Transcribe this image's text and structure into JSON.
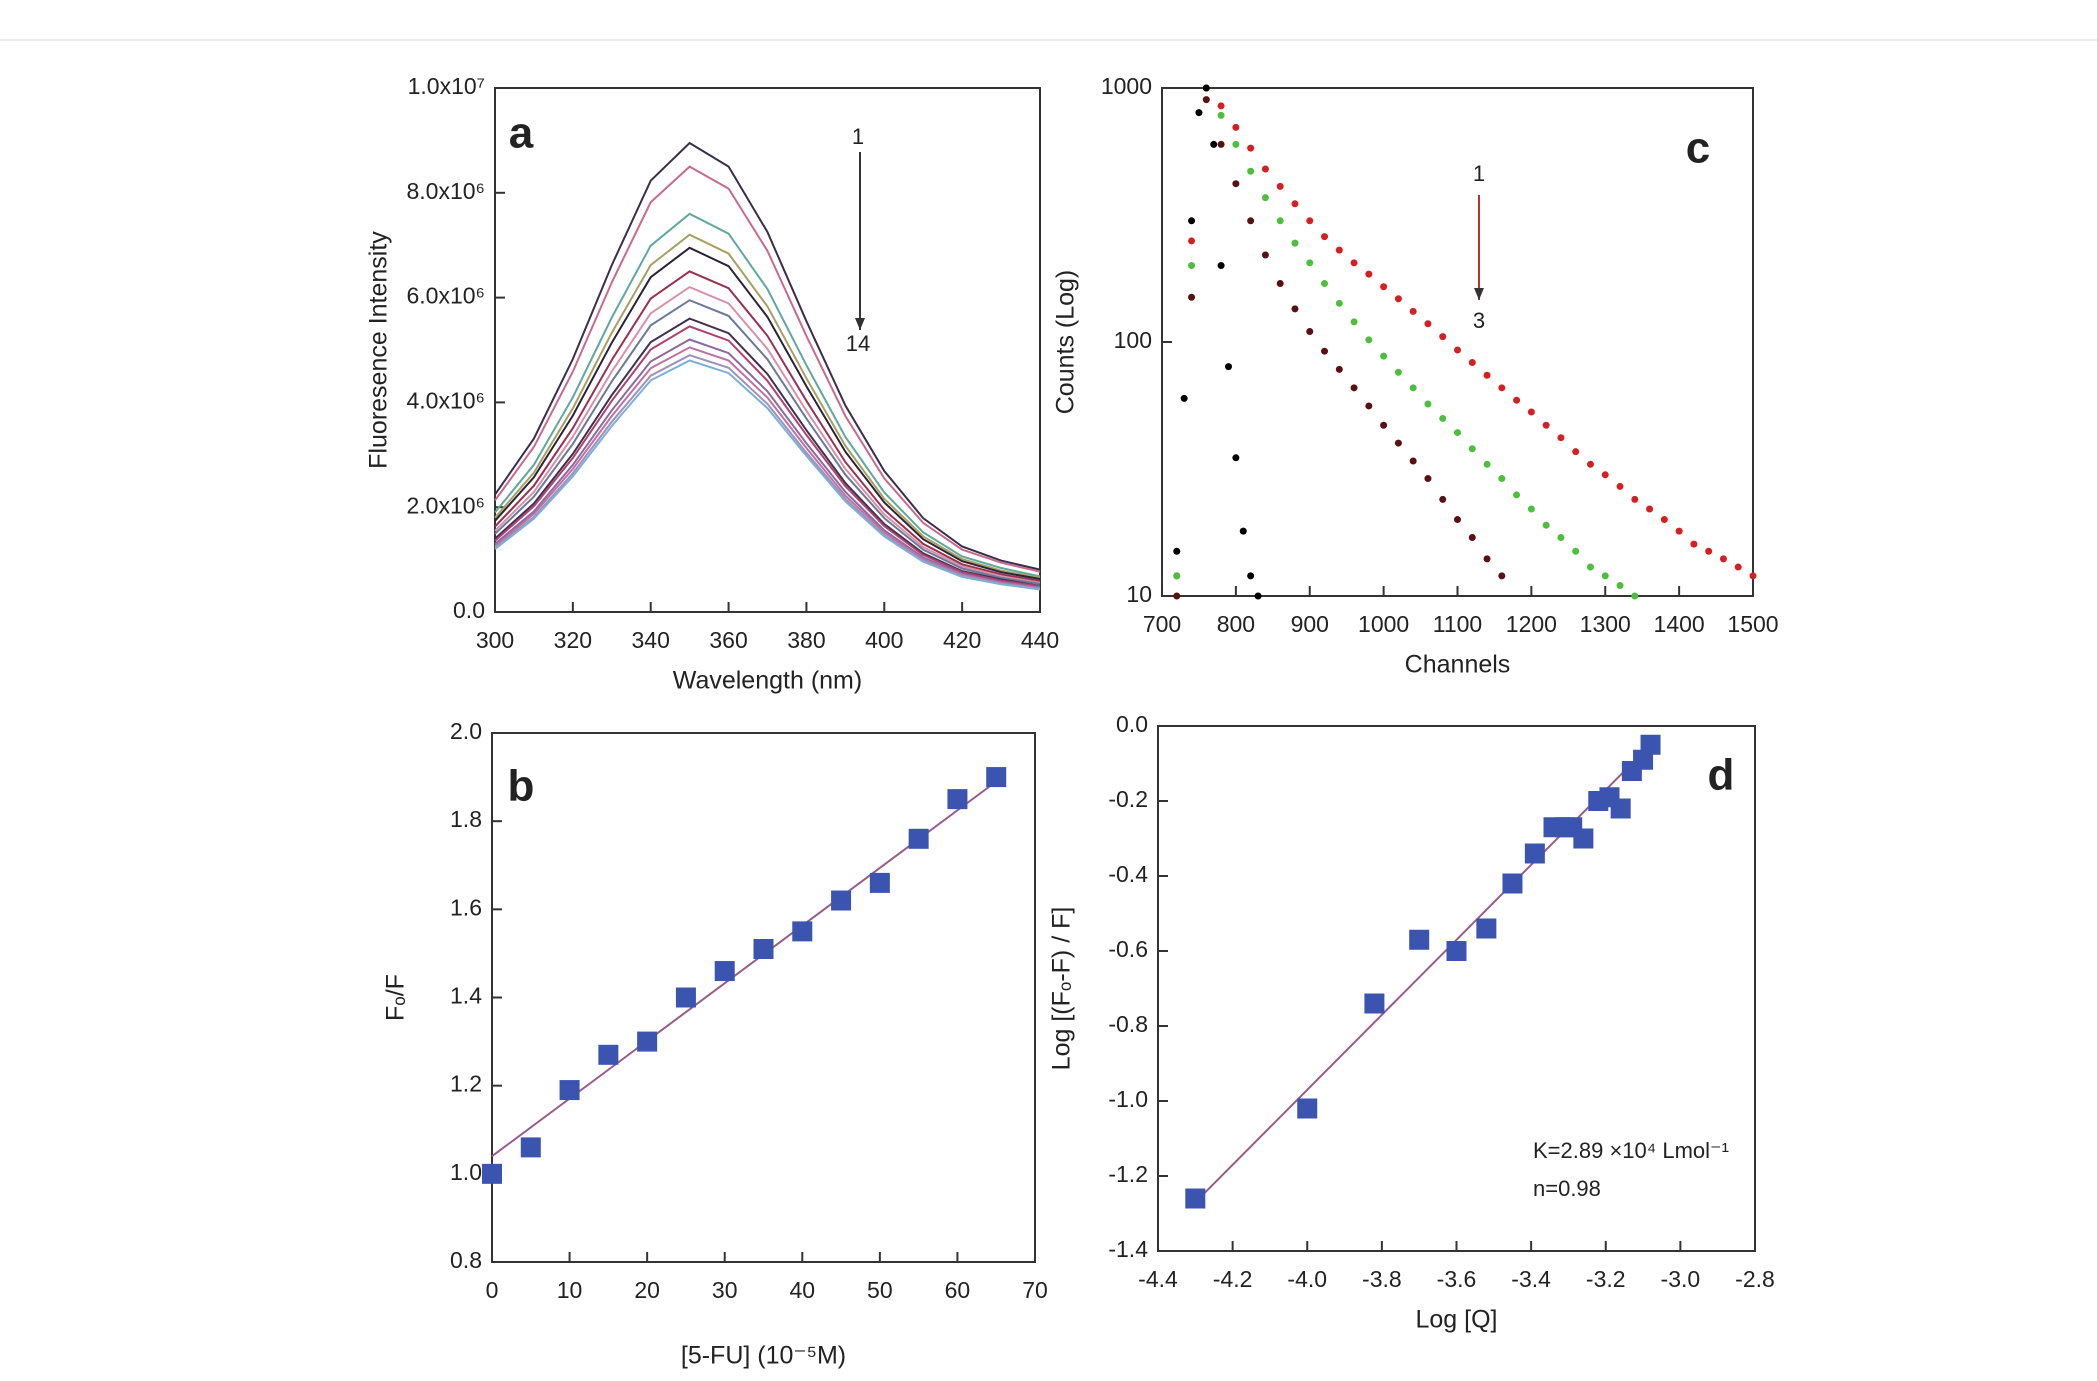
{
  "chart_data": [
    {
      "type": "line",
      "panel_label": "a",
      "annotations": [
        "1",
        "14"
      ],
      "xlabel": "Wavelength (nm)",
      "ylabel": "Fluoresence Intensity",
      "x": [
        300,
        310,
        320,
        330,
        340,
        350,
        360,
        370,
        380,
        390,
        400,
        410,
        420,
        430,
        440
      ],
      "series": [
        {
          "color": "#3a2e4a",
          "values": [
            2240000,
            3310000,
            4830000,
            6620000,
            8230000,
            8950000,
            8500000,
            7250000,
            5550000,
            3940000,
            2690000,
            1790000,
            1250000,
            980000,
            810000
          ]
        },
        {
          "color": "#c86a8a",
          "values": [
            2130000,
            3150000,
            4590000,
            6290000,
            7820000,
            8500000,
            8080000,
            6890000,
            5270000,
            3740000,
            2550000,
            1700000,
            1190000,
            940000,
            770000
          ]
        },
        {
          "color": "#5fa8a0",
          "values": [
            1900000,
            2810000,
            4100000,
            5620000,
            6990000,
            7600000,
            7220000,
            6160000,
            4710000,
            3340000,
            2280000,
            1520000,
            1060000,
            840000,
            680000
          ]
        },
        {
          "color": "#a8a060",
          "values": [
            1800000,
            2660000,
            3890000,
            5330000,
            6620000,
            7200000,
            6840000,
            5830000,
            4460000,
            3170000,
            2160000,
            1440000,
            1010000,
            790000,
            650000
          ]
        },
        {
          "color": "#2c2238",
          "values": [
            1740000,
            2570000,
            3750000,
            5140000,
            6390000,
            6950000,
            6600000,
            5630000,
            4310000,
            3060000,
            2090000,
            1390000,
            970000,
            760000,
            630000
          ]
        },
        {
          "color": "#9a3050",
          "values": [
            1630000,
            2410000,
            3510000,
            4810000,
            5980000,
            6500000,
            6180000,
            5270000,
            4030000,
            2860000,
            1950000,
            1300000,
            910000,
            720000,
            590000
          ]
        },
        {
          "color": "#d890a8",
          "values": [
            1550000,
            2290000,
            3350000,
            4590000,
            5700000,
            6200000,
            5890000,
            5020000,
            3840000,
            2730000,
            1860000,
            1240000,
            870000,
            680000,
            560000
          ]
        },
        {
          "color": "#6a7a9a",
          "values": [
            1490000,
            2200000,
            3210000,
            4400000,
            5470000,
            5950000,
            5650000,
            4820000,
            3690000,
            2620000,
            1790000,
            1190000,
            830000,
            650000,
            540000
          ]
        },
        {
          "color": "#403050",
          "values": [
            1400000,
            2070000,
            3020000,
            4140000,
            5150000,
            5600000,
            5320000,
            4540000,
            3470000,
            2460000,
            1680000,
            1120000,
            780000,
            620000,
            500000
          ]
        },
        {
          "color": "#b04070",
          "values": [
            1360000,
            2020000,
            2940000,
            4030000,
            5010000,
            5450000,
            5180000,
            4410000,
            3380000,
            2400000,
            1640000,
            1090000,
            760000,
            600000,
            490000
          ]
        },
        {
          "color": "#8a6aa0",
          "values": [
            1300000,
            1920000,
            2810000,
            3850000,
            4780000,
            5200000,
            4940000,
            4210000,
            3220000,
            2290000,
            1560000,
            1040000,
            730000,
            570000,
            470000
          ]
        },
        {
          "color": "#c070a0",
          "values": [
            1260000,
            1870000,
            2730000,
            3740000,
            4650000,
            5050000,
            4800000,
            4090000,
            3130000,
            2220000,
            1520000,
            1010000,
            710000,
            560000,
            450000
          ]
        },
        {
          "color": "#a090b8",
          "values": [
            1230000,
            1810000,
            2650000,
            3630000,
            4510000,
            4900000,
            4660000,
            3970000,
            3040000,
            2160000,
            1470000,
            980000,
            690000,
            540000,
            440000
          ]
        },
        {
          "color": "#7ab0d8",
          "values": [
            1200000,
            1780000,
            2590000,
            3550000,
            4420000,
            4800000,
            4560000,
            3890000,
            2980000,
            2110000,
            1440000,
            960000,
            670000,
            530000,
            430000
          ]
        }
      ],
      "xlim": [
        300,
        440
      ],
      "xticks": [
        300,
        320,
        340,
        360,
        380,
        400,
        420,
        440
      ],
      "ylim": [
        0,
        10000000
      ],
      "yticks": [
        {
          "value": 0,
          "label": "0.0"
        },
        {
          "value": 2000000,
          "label": "2.0x10⁶"
        },
        {
          "value": 4000000,
          "label": "4.0x10⁶"
        },
        {
          "value": 6000000,
          "label": "6.0x10⁶"
        },
        {
          "value": 8000000,
          "label": "8.0x10⁶"
        },
        {
          "value": 10000000,
          "label": "1.0x10⁷"
        }
      ]
    },
    {
      "type": "scatter",
      "panel_label": "b",
      "marker": "square",
      "xlabel": "[5-FU]  (10⁻⁵M)",
      "ylabel": "Fₒ/F",
      "series": [
        {
          "color": "#3a54b0",
          "x": [
            0,
            5,
            10,
            15,
            20,
            25,
            30,
            35,
            40,
            45,
            50,
            55,
            60,
            65
          ],
          "values": [
            1.0,
            1.06,
            1.19,
            1.27,
            1.3,
            1.4,
            1.46,
            1.51,
            1.55,
            1.62,
            1.66,
            1.76,
            1.85,
            1.9
          ]
        }
      ],
      "fit_line": {
        "color": "#9a5a8a",
        "x": [
          0,
          65
        ],
        "values": [
          1.04,
          1.89
        ]
      },
      "xlim": [
        0,
        70
      ],
      "xticks": [
        0,
        10,
        20,
        30,
        40,
        50,
        60,
        70
      ],
      "ylim": [
        0.8,
        2.0
      ],
      "yticks": [
        0.8,
        {
          "value": 1,
          "label": "1.0"
        },
        1.2,
        1.4,
        1.6,
        1.8,
        {
          "value": 2,
          "label": "2.0"
        }
      ]
    },
    {
      "type": "scatter",
      "panel_label": "c",
      "marker": "dot",
      "log_y": true,
      "annotations": [
        "1",
        "3"
      ],
      "xlabel": "Channels",
      "ylabel": "Counts (Log)",
      "series": [
        {
          "color": "#d42020",
          "x": [
            720,
            740,
            760,
            780,
            800,
            820,
            840,
            860,
            880,
            900,
            920,
            940,
            960,
            980,
            1000,
            1020,
            1040,
            1060,
            1080,
            1100,
            1120,
            1140,
            1160,
            1180,
            1200,
            1220,
            1240,
            1260,
            1280,
            1300,
            1320,
            1340,
            1360,
            1380,
            1400,
            1420,
            1440,
            1460,
            1480,
            1500
          ],
          "values": [
            12,
            250,
            1000,
            850,
            700,
            580,
            480,
            410,
            350,
            300,
            260,
            230,
            205,
            185,
            165,
            148,
            132,
            118,
            105,
            93,
            83,
            74,
            66,
            59,
            53,
            47,
            42,
            37,
            33,
            30,
            27,
            24,
            22,
            20,
            18,
            16,
            15,
            14,
            13,
            12
          ]
        },
        {
          "color": "#4cbf3c",
          "x": [
            720,
            740,
            760,
            780,
            800,
            820,
            840,
            860,
            880,
            900,
            920,
            940,
            960,
            980,
            1000,
            1020,
            1040,
            1060,
            1080,
            1100,
            1120,
            1140,
            1160,
            1180,
            1200,
            1220,
            1240,
            1260,
            1280,
            1300,
            1320,
            1340
          ],
          "values": [
            12,
            200,
            1000,
            780,
            600,
            470,
            370,
            300,
            245,
            205,
            170,
            142,
            120,
            102,
            88,
            76,
            66,
            57,
            50,
            44,
            38,
            33,
            29,
            25,
            22,
            19,
            17,
            15,
            13,
            12,
            11,
            10
          ]
        },
        {
          "color": "#5a1010",
          "x": [
            720,
            740,
            760,
            780,
            800,
            820,
            840,
            860,
            880,
            900,
            920,
            940,
            960,
            980,
            1000,
            1020,
            1040,
            1060,
            1080,
            1100,
            1120,
            1140,
            1160
          ],
          "values": [
            10,
            150,
            900,
            600,
            420,
            300,
            220,
            170,
            135,
            110,
            92,
            78,
            66,
            56,
            47,
            40,
            34,
            29,
            24,
            20,
            17,
            14,
            12
          ]
        },
        {
          "color": "#000000",
          "x": [
            720,
            730,
            740,
            750,
            760,
            770,
            780,
            790,
            800,
            810,
            820,
            830
          ],
          "values": [
            15,
            60,
            300,
            800,
            1000,
            600,
            200,
            80,
            35,
            18,
            12,
            10
          ]
        }
      ],
      "xlim": [
        700,
        1500
      ],
      "xticks": [
        700,
        800,
        900,
        1000,
        1100,
        1200,
        1300,
        1400,
        1500
      ],
      "ylim": [
        10,
        1000
      ],
      "yticks": [
        10,
        100,
        1000
      ]
    },
    {
      "type": "scatter",
      "panel_label": "d",
      "marker": "square",
      "annotations": [
        "K=2.89 ×10⁴ Lmol⁻¹",
        "n=0.98"
      ],
      "xlabel": "Log [Q]",
      "ylabel": "Log [(Fₒ-F) / F]",
      "series": [
        {
          "color": "#3a54b0",
          "x": [
            -4.3,
            -4.0,
            -3.82,
            -3.7,
            -3.6,
            -3.52,
            -3.45,
            -3.39,
            -3.34,
            -3.31,
            -3.29,
            -3.26,
            -3.22,
            -3.19,
            -3.16,
            -3.13,
            -3.1,
            -3.08
          ],
          "values": [
            -1.26,
            -1.02,
            -0.74,
            -0.57,
            -0.6,
            -0.54,
            -0.42,
            -0.34,
            -0.27,
            -0.27,
            -0.27,
            -0.3,
            -0.2,
            -0.19,
            -0.22,
            -0.12,
            -0.09,
            -0.05
          ]
        }
      ],
      "fit_line": {
        "color": "#9a5a8a",
        "x": [
          -4.3,
          -3.1
        ],
        "values": [
          -1.27,
          -0.07
        ]
      },
      "xlim": [
        -4.4,
        -2.8
      ],
      "xticks": [
        -4.4,
        -4.2,
        {
          "value": -4,
          "label": "-4.0"
        },
        -3.8,
        -3.6,
        -3.4,
        -3.2,
        {
          "value": -3,
          "label": "-3.0"
        },
        -2.8
      ],
      "ylim": [
        -1.4,
        0
      ],
      "yticks": [
        -1.4,
        -1.2,
        {
          "value": -1,
          "label": "-1.0"
        },
        -0.8,
        -0.6,
        -0.4,
        -0.2,
        {
          "value": 0,
          "label": "0.0"
        }
      ]
    }
  ]
}
